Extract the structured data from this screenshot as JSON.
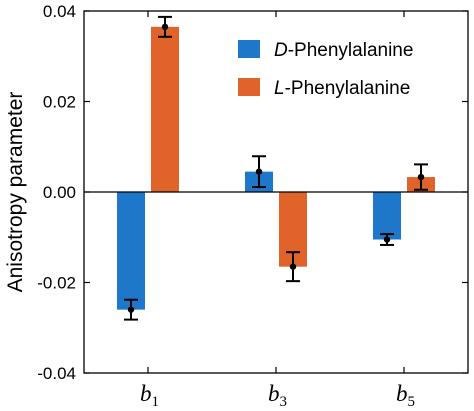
{
  "chart_data": {
    "type": "bar",
    "categories": [
      {
        "base": "b",
        "sub": "1"
      },
      {
        "base": "b",
        "sub": "3"
      },
      {
        "base": "b",
        "sub": "5"
      }
    ],
    "series": [
      {
        "name_prefix": "D",
        "name_suffix": "-Phenylalanine",
        "color": "#1f77c9",
        "values": [
          -0.026,
          0.0045,
          -0.0105
        ],
        "errors": [
          0.0022,
          0.0034,
          0.0012
        ]
      },
      {
        "name_prefix": "L",
        "name_suffix": "-Phenylalanine",
        "color": "#e0632a",
        "values": [
          0.0365,
          -0.0165,
          0.0033
        ],
        "errors": [
          0.0022,
          0.0032,
          0.0028
        ]
      }
    ],
    "ylabel": "Anisotropy parameter",
    "ylim": [
      -0.04,
      0.04
    ],
    "yticks": [
      "-0.04",
      "-0.02",
      "0.00",
      "0.02",
      "0.04"
    ],
    "ytick_values": [
      -0.04,
      -0.02,
      0.0,
      0.02,
      0.04
    ],
    "legend_position": "top-right",
    "grid": false
  }
}
